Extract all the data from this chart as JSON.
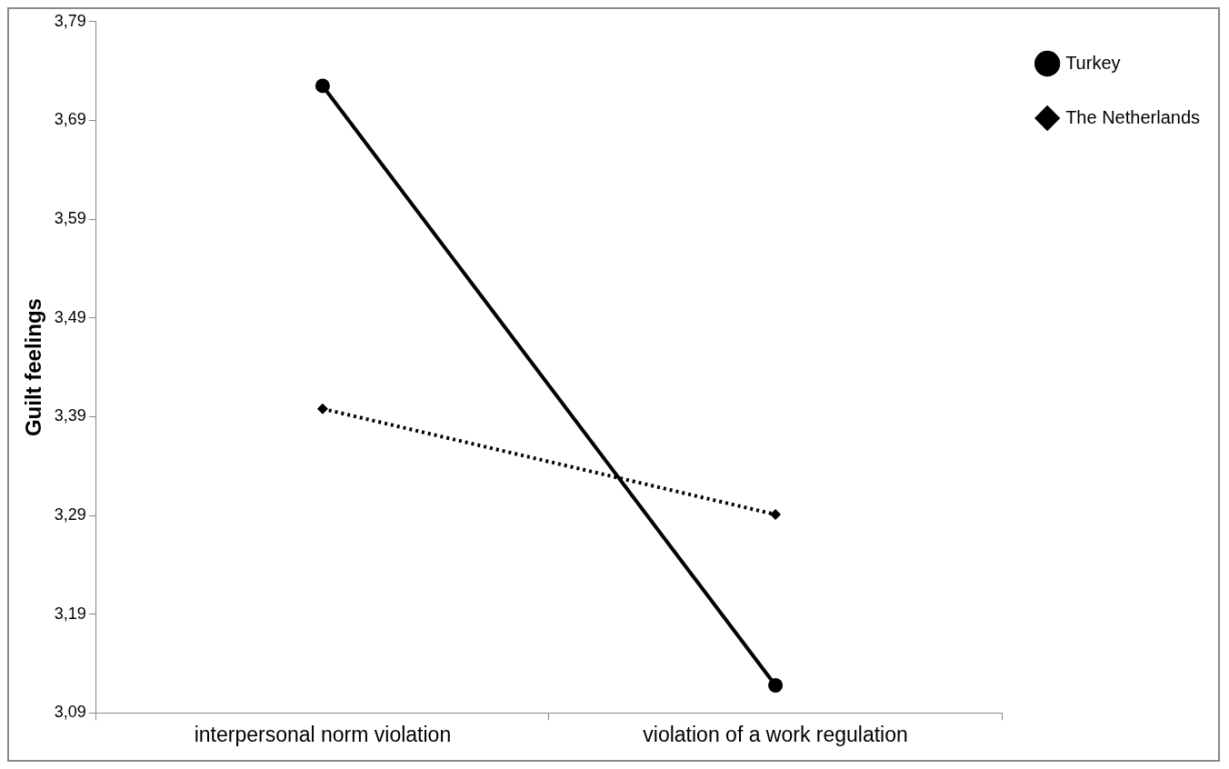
{
  "chart_data": {
    "type": "line",
    "ylabel": "Guilt feelings",
    "categories": [
      "interpersonal norm violation",
      "violation of a work regulation"
    ],
    "series": [
      {
        "name": "Turkey",
        "color": "#000000",
        "values": [
          3.725,
          3.118
        ],
        "marker": "circle",
        "line_style": "solid"
      },
      {
        "name": "The Netherlands",
        "color": "#000000",
        "values": [
          3.398,
          3.291
        ],
        "marker": "diamond",
        "line_style": "dotted"
      }
    ],
    "ylim": [
      3.09,
      3.79
    ],
    "yticks": [
      {
        "value": 3.09,
        "label": "3,09"
      },
      {
        "value": 3.19,
        "label": "3,19"
      },
      {
        "value": 3.29,
        "label": "3,29"
      },
      {
        "value": 3.39,
        "label": "3,39"
      },
      {
        "value": 3.49,
        "label": "3,49"
      },
      {
        "value": 3.59,
        "label": "3,59"
      },
      {
        "value": 3.69,
        "label": "3,69"
      },
      {
        "value": 3.79,
        "label": "3,79"
      }
    ],
    "grid": false,
    "legend": "top right"
  }
}
